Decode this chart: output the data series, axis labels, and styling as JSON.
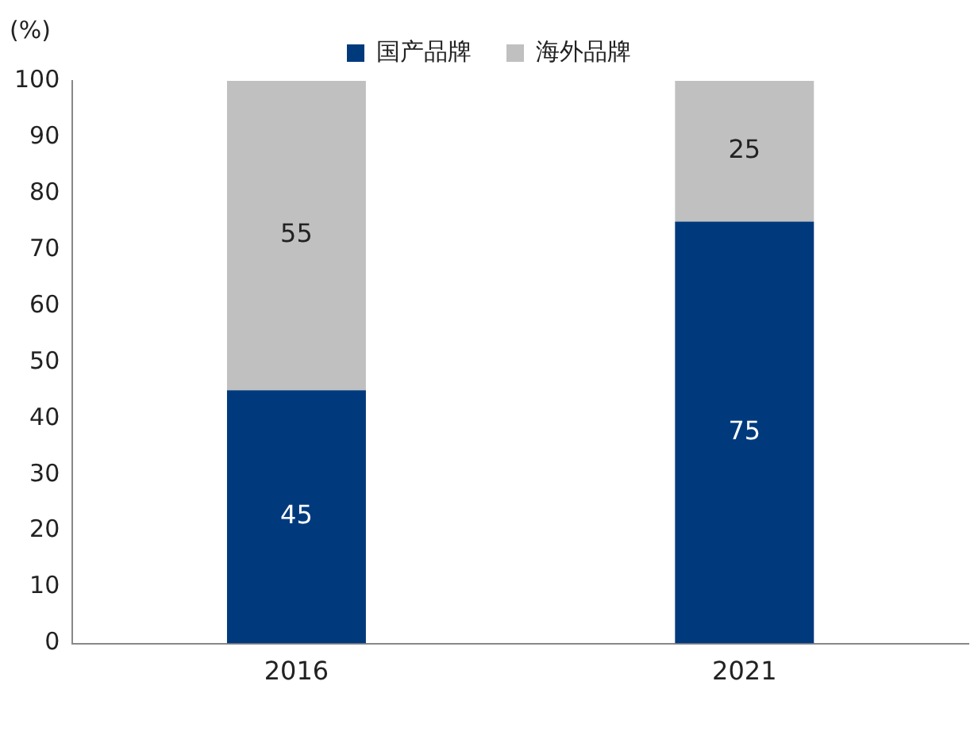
{
  "chart_data": {
    "type": "bar",
    "stacked": true,
    "ylabel": "(%)",
    "categories": [
      "2016",
      "2021"
    ],
    "series": [
      {
        "name": "国产品牌",
        "color": "#003a7d",
        "values": [
          45,
          75
        ]
      },
      {
        "name": "海外品牌",
        "color": "#c0c0c0",
        "values": [
          55,
          25
        ]
      }
    ],
    "ylim": [
      0,
      100
    ],
    "yticks": [
      0,
      10,
      20,
      30,
      40,
      50,
      60,
      70,
      80,
      90,
      100
    ],
    "grid": false,
    "legend": "top",
    "data_labels": true
  }
}
